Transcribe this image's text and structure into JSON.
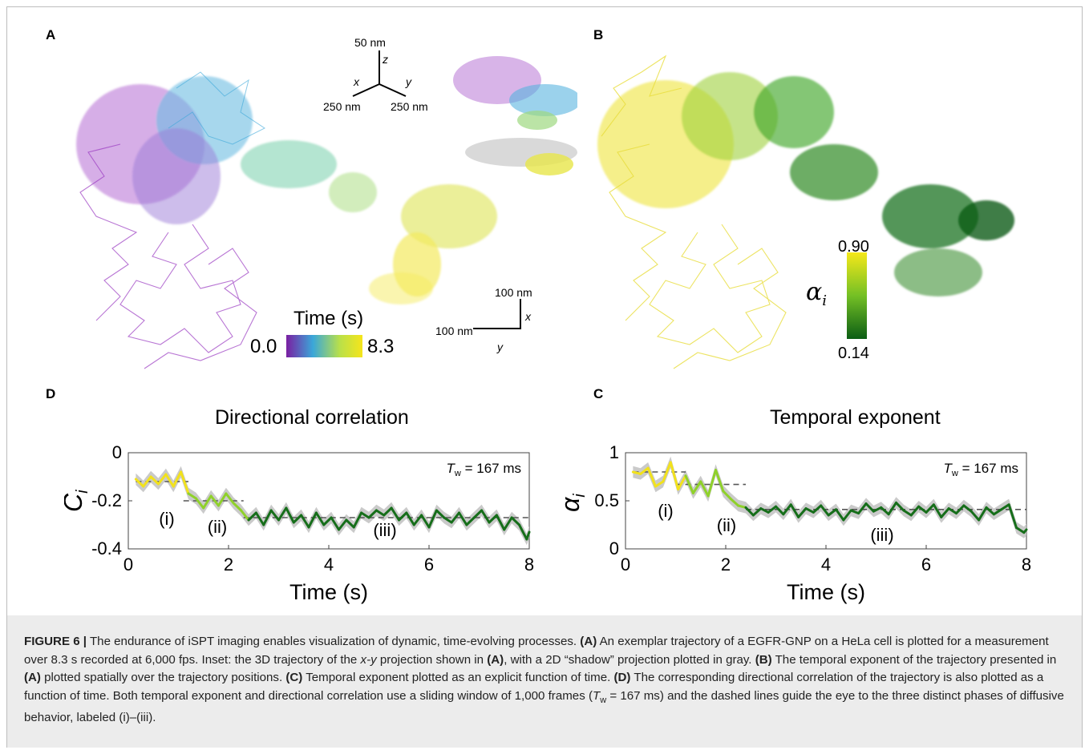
{
  "panels": {
    "a": "A",
    "b": "B",
    "c": "C",
    "d": "D"
  },
  "panel_a": {
    "axes_3d": {
      "z": "50 nm",
      "z_axis": "z",
      "x": "250 nm",
      "x_axis": "x",
      "y": "250 nm",
      "y_axis": "y"
    },
    "scalebar": {
      "vertical": "100 nm",
      "vertical_axis": "x",
      "horizontal": "100 nm",
      "horizontal_axis": "y"
    },
    "colorbar": {
      "title": "Time (s)",
      "min": "0.0",
      "max": "8.3",
      "colors": [
        "#7b1fa2",
        "#3aa7d9",
        "#b9e04a",
        "#f5e51b"
      ]
    }
  },
  "panel_b": {
    "colorbar": {
      "symbol": "α",
      "subscript": "i",
      "max": "0.90",
      "min": "0.14",
      "colors": [
        "#f5e81a",
        "#74c025",
        "#0b5d14"
      ]
    }
  },
  "chart_data": [
    {
      "id": "D",
      "type": "line",
      "title": "Directional correlation",
      "xlabel": "Time (s)",
      "ylabel": "C_i",
      "xlim": [
        0,
        8
      ],
      "ylim": [
        -0.4,
        0
      ],
      "xticks": [
        "0",
        "2",
        "4",
        "6",
        "8"
      ],
      "yticks": [
        "0",
        "-0.2",
        "-0.4"
      ],
      "annotation": "T_w = 167 ms",
      "phases": [
        {
          "label": "(i)",
          "x_start": 0.15,
          "x_end": 1.2,
          "level": -0.12
        },
        {
          "label": "(ii)",
          "x_start": 1.1,
          "x_end": 2.3,
          "level": -0.2
        },
        {
          "label": "(iii)",
          "x_start": 2.3,
          "x_end": 8.0,
          "level": -0.27
        }
      ],
      "series": {
        "x": [
          0.15,
          0.3,
          0.45,
          0.6,
          0.75,
          0.9,
          1.05,
          1.2,
          1.35,
          1.5,
          1.65,
          1.8,
          1.95,
          2.1,
          2.25,
          2.4,
          2.55,
          2.7,
          2.85,
          3.0,
          3.15,
          3.3,
          3.45,
          3.6,
          3.75,
          3.9,
          4.05,
          4.2,
          4.35,
          4.5,
          4.65,
          4.8,
          4.95,
          5.1,
          5.25,
          5.4,
          5.55,
          5.7,
          5.85,
          6.0,
          6.15,
          6.3,
          6.45,
          6.6,
          6.75,
          6.9,
          7.05,
          7.2,
          7.35,
          7.5,
          7.65,
          7.8,
          7.95,
          8.0
        ],
        "y": [
          -0.11,
          -0.14,
          -0.1,
          -0.13,
          -0.09,
          -0.14,
          -0.08,
          -0.17,
          -0.19,
          -0.23,
          -0.18,
          -0.22,
          -0.17,
          -0.21,
          -0.24,
          -0.28,
          -0.25,
          -0.3,
          -0.24,
          -0.28,
          -0.23,
          -0.29,
          -0.26,
          -0.31,
          -0.25,
          -0.3,
          -0.27,
          -0.32,
          -0.28,
          -0.31,
          -0.25,
          -0.27,
          -0.24,
          -0.26,
          -0.23,
          -0.28,
          -0.25,
          -0.3,
          -0.26,
          -0.31,
          -0.24,
          -0.27,
          -0.29,
          -0.25,
          -0.3,
          -0.27,
          -0.24,
          -0.29,
          -0.26,
          -0.32,
          -0.27,
          -0.3,
          -0.36,
          -0.33
        ]
      }
    },
    {
      "id": "C",
      "type": "line",
      "title": "Temporal exponent",
      "xlabel": "Time (s)",
      "ylabel": "α_i",
      "xlim": [
        0,
        8
      ],
      "ylim": [
        0,
        1
      ],
      "xticks": [
        "0",
        "2",
        "4",
        "6",
        "8"
      ],
      "yticks": [
        "1",
        "0.5",
        "0"
      ],
      "annotation": "T_w = 167 ms",
      "phases": [
        {
          "label": "(i)",
          "x_start": 0.15,
          "x_end": 1.2,
          "level": 0.8
        },
        {
          "label": "(ii)",
          "x_start": 1.0,
          "x_end": 2.4,
          "level": 0.67
        },
        {
          "label": "(iii)",
          "x_start": 2.4,
          "x_end": 8.0,
          "level": 0.41
        }
      ],
      "series": {
        "x": [
          0.15,
          0.3,
          0.45,
          0.6,
          0.75,
          0.9,
          1.05,
          1.2,
          1.35,
          1.5,
          1.65,
          1.8,
          1.95,
          2.1,
          2.25,
          2.4,
          2.55,
          2.7,
          2.85,
          3.0,
          3.15,
          3.3,
          3.45,
          3.6,
          3.75,
          3.9,
          4.05,
          4.2,
          4.35,
          4.5,
          4.65,
          4.8,
          4.95,
          5.1,
          5.25,
          5.4,
          5.55,
          5.7,
          5.85,
          6.0,
          6.15,
          6.3,
          6.45,
          6.6,
          6.75,
          6.9,
          7.05,
          7.2,
          7.35,
          7.5,
          7.65,
          7.8,
          7.95,
          8.0
        ],
        "y": [
          0.8,
          0.78,
          0.84,
          0.65,
          0.7,
          0.9,
          0.62,
          0.76,
          0.58,
          0.7,
          0.55,
          0.82,
          0.6,
          0.52,
          0.45,
          0.43,
          0.35,
          0.42,
          0.38,
          0.44,
          0.36,
          0.46,
          0.33,
          0.42,
          0.38,
          0.45,
          0.35,
          0.41,
          0.3,
          0.4,
          0.37,
          0.47,
          0.39,
          0.43,
          0.36,
          0.48,
          0.4,
          0.35,
          0.44,
          0.38,
          0.46,
          0.33,
          0.42,
          0.37,
          0.45,
          0.39,
          0.3,
          0.43,
          0.36,
          0.41,
          0.46,
          0.22,
          0.17,
          0.2
        ]
      }
    }
  ],
  "caption": {
    "figure_label": "FIGURE 6 |",
    "s1": " The endurance of iSPT imaging enables visualization of dynamic, time-evolving processes. ",
    "a_ref": "(A)",
    "s2": " An exemplar trajectory of a EGFR-GNP on a HeLa cell is plotted for a measurement over 8.3 s recorded at 6,000 fps. Inset: the 3D trajectory of the ",
    "xy": "x-y",
    "s3": " projection shown in ",
    "a_ref2": "(A)",
    "s4": ", with a 2D “shadow” projection plotted in gray. ",
    "b_ref": "(B)",
    "s5": " The temporal exponent of the trajectory presented in ",
    "a_ref3": "(A)",
    "s6": " plotted spatially over the trajectory positions. ",
    "c_ref": "(C)",
    "s7": " Temporal exponent plotted as an explicit function of time. ",
    "d_ref": "(D)",
    "s8": " The corresponding directional correlation of the trajectory is also plotted as a function of time. Both temporal exponent and directional correlation use a sliding window of 1,000 frames (",
    "tw": "T",
    "tw_sub": "w",
    "s9": " = 167 ms) and the dashed lines guide the eye to the three distinct phases of diffusive behavior, labeled (i)–(iii)."
  }
}
